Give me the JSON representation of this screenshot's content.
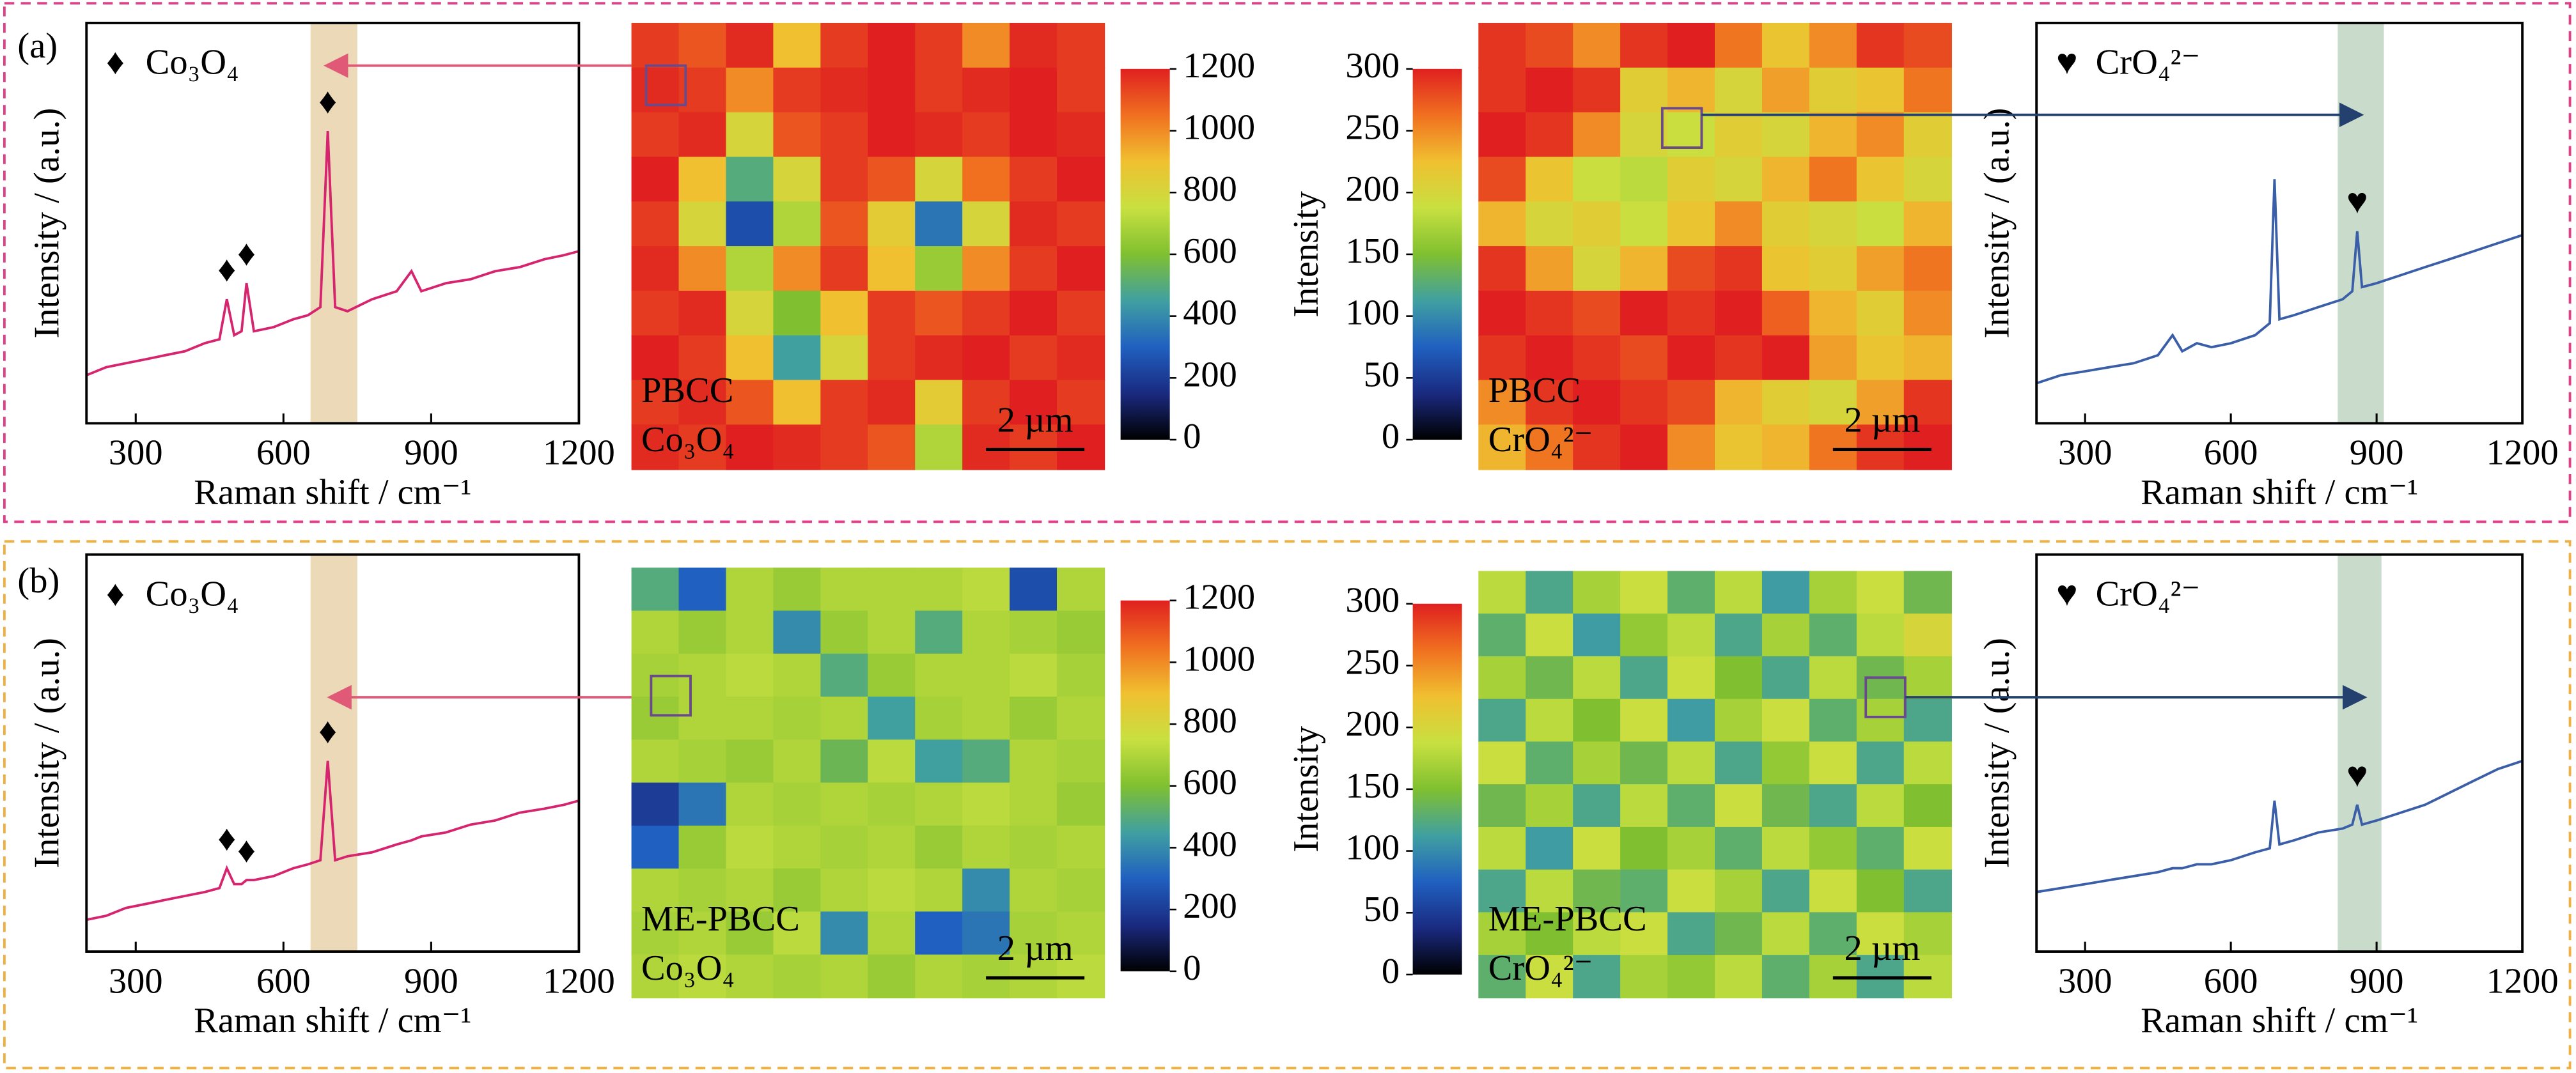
{
  "panel_labels": [
    "(a)",
    "(b)"
  ],
  "chart_data": [
    {
      "type": "line",
      "x": [
        200,
        240,
        280,
        320,
        360,
        400,
        440,
        470,
        485,
        500,
        515,
        525,
        540,
        580,
        620,
        650,
        675,
        690,
        705,
        730,
        780,
        830,
        860,
        880,
        930,
        980,
        1030,
        1080,
        1130,
        1170,
        1200
      ],
      "values": [
        12,
        14,
        15,
        16,
        17,
        18,
        20,
        21,
        31,
        22,
        23,
        35,
        23,
        24,
        26,
        27,
        29,
        73,
        29,
        28,
        31,
        33,
        38,
        33,
        35,
        36,
        38,
        39,
        41,
        42,
        43
      ],
      "color": "#d6246e",
      "xlim": [
        200,
        1200
      ],
      "xticks": [
        300,
        600,
        900,
        1200
      ],
      "ylim": [
        0,
        100
      ],
      "xlabel": "Raman shift / cm⁻¹",
      "ylabel": "Intensity / (a.u.)",
      "legend": "Co₃O₄",
      "marker": "♦",
      "peaks": [
        485,
        525,
        690
      ],
      "highlight": [
        655,
        750
      ],
      "highlight_color": "#ecd9b8"
    },
    {
      "type": "heatmap",
      "clim": [
        0,
        1200
      ],
      "cticks": [
        0,
        200,
        400,
        600,
        800,
        1000,
        1200
      ],
      "colors": [
        "#000000",
        "#1a2a80",
        "#2060c0",
        "#40a0a0",
        "#80c030",
        "#c8e040",
        "#f0c030",
        "#f07020",
        "#e02020"
      ],
      "labels": [
        "PBCC",
        "Co₃O₄"
      ],
      "scalebar": "2 µm",
      "values": [
        [
          1150,
          1100,
          1180,
          900,
          1150,
          1200,
          1150,
          1000,
          1180,
          1150
        ],
        [
          1180,
          1150,
          1000,
          1150,
          1180,
          1200,
          1150,
          1180,
          1200,
          1150
        ],
        [
          1150,
          1180,
          800,
          1100,
          1150,
          1200,
          1180,
          1150,
          1200,
          1180
        ],
        [
          1200,
          900,
          500,
          800,
          1150,
          1100,
          800,
          1050,
          1150,
          1200
        ],
        [
          1150,
          800,
          250,
          700,
          1100,
          850,
          350,
          800,
          1180,
          1150
        ],
        [
          1180,
          1000,
          700,
          1000,
          1150,
          900,
          650,
          1000,
          1150,
          1200
        ],
        [
          1150,
          1180,
          800,
          600,
          900,
          1150,
          1100,
          1150,
          1200,
          1150
        ],
        [
          1200,
          1150,
          900,
          450,
          800,
          1150,
          1180,
          1200,
          1150,
          1180
        ],
        [
          1150,
          1180,
          1100,
          900,
          1150,
          1180,
          850,
          1150,
          1200,
          1150
        ],
        [
          1180,
          1150,
          1200,
          1180,
          1150,
          1100,
          700,
          1180,
          1150,
          1200
        ]
      ]
    },
    {
      "type": "heatmap",
      "clim": [
        0,
        300
      ],
      "cticks": [
        0,
        50,
        100,
        150,
        200,
        250,
        300
      ],
      "colorbar_label": "Intensity",
      "colors": [
        "#000000",
        "#1a2a80",
        "#2060c0",
        "#40a0a0",
        "#80c030",
        "#c8e040",
        "#f0c030",
        "#f07020",
        "#e02020"
      ],
      "labels": [
        "PBCC",
        "CrO₄²⁻"
      ],
      "scalebar": "2 µm",
      "values": [
        [
          290,
          280,
          250,
          290,
          300,
          260,
          220,
          250,
          290,
          280
        ],
        [
          290,
          300,
          290,
          210,
          230,
          200,
          240,
          210,
          220,
          260
        ],
        [
          300,
          290,
          250,
          200,
          190,
          210,
          200,
          230,
          250,
          210
        ],
        [
          280,
          220,
          190,
          180,
          210,
          200,
          230,
          260,
          220,
          200
        ],
        [
          230,
          200,
          210,
          190,
          220,
          250,
          210,
          200,
          190,
          230
        ],
        [
          290,
          240,
          200,
          230,
          280,
          290,
          220,
          210,
          240,
          260
        ],
        [
          300,
          290,
          280,
          300,
          290,
          300,
          270,
          230,
          210,
          250
        ],
        [
          290,
          300,
          290,
          280,
          300,
          290,
          300,
          240,
          220,
          230
        ],
        [
          250,
          290,
          300,
          290,
          280,
          230,
          210,
          200,
          240,
          290
        ],
        [
          230,
          260,
          290,
          300,
          250,
          220,
          230,
          260,
          290,
          300
        ]
      ]
    },
    {
      "type": "line",
      "x": [
        200,
        250,
        300,
        350,
        400,
        450,
        480,
        500,
        530,
        560,
        600,
        650,
        680,
        690,
        700,
        730,
        780,
        830,
        850,
        860,
        870,
        900,
        950,
        1000,
        1050,
        1100,
        1150,
        1200
      ],
      "values": [
        10,
        12,
        13,
        14,
        15,
        17,
        22,
        18,
        20,
        19,
        20,
        22,
        25,
        61,
        26,
        27,
        29,
        31,
        33,
        48,
        34,
        35,
        37,
        39,
        41,
        43,
        45,
        47
      ],
      "color": "#3a5ea8",
      "xlim": [
        200,
        1200
      ],
      "xticks": [
        300,
        600,
        900,
        1200
      ],
      "ylim": [
        0,
        100
      ],
      "xlabel": "Raman shift / cm⁻¹",
      "ylabel": "Intensity / (a.u.)",
      "legend": "CrO₄²⁻",
      "marker": "♥",
      "peaks": [
        860
      ],
      "highlight": [
        820,
        915
      ],
      "highlight_color": "#c9dccb"
    },
    {
      "type": "line",
      "x": [
        200,
        240,
        280,
        320,
        360,
        400,
        440,
        470,
        485,
        500,
        515,
        525,
        540,
        580,
        620,
        650,
        675,
        690,
        705,
        730,
        780,
        830,
        860,
        880,
        930,
        980,
        1030,
        1080,
        1130,
        1170,
        1200
      ],
      "values": [
        8,
        9,
        11,
        12,
        13,
        14,
        15,
        16,
        21,
        17,
        17,
        18,
        18,
        19,
        21,
        22,
        23,
        48,
        23,
        24,
        25,
        27,
        28,
        29,
        30,
        32,
        33,
        35,
        36,
        37,
        38
      ],
      "color": "#d6246e",
      "xlim": [
        200,
        1200
      ],
      "xticks": [
        300,
        600,
        900,
        1200
      ],
      "ylim": [
        0,
        100
      ],
      "xlabel": "Raman shift / cm⁻¹",
      "ylabel": "Intensity / (a.u.)",
      "legend": "Co₃O₄",
      "marker": "♦",
      "peaks": [
        485,
        525,
        690
      ],
      "highlight": [
        655,
        750
      ],
      "highlight_color": "#ecd9b8"
    },
    {
      "type": "heatmap",
      "clim": [
        0,
        1200
      ],
      "cticks": [
        0,
        200,
        400,
        600,
        800,
        1000,
        1200
      ],
      "colors": [
        "#000000",
        "#1a2a80",
        "#2060c0",
        "#40a0a0",
        "#80c030",
        "#c8e040",
        "#f0c030",
        "#f07020",
        "#e02020"
      ],
      "labels": [
        "ME-PBCC",
        "Co₃O₄"
      ],
      "scalebar": "2 µm",
      "values": [
        [
          500,
          300,
          700,
          650,
          700,
          700,
          700,
          720,
          250,
          700
        ],
        [
          700,
          650,
          700,
          400,
          650,
          700,
          500,
          700,
          680,
          650
        ],
        [
          680,
          700,
          720,
          700,
          500,
          650,
          700,
          700,
          720,
          680
        ],
        [
          650,
          700,
          700,
          680,
          700,
          450,
          680,
          700,
          650,
          700
        ],
        [
          700,
          680,
          650,
          700,
          550,
          720,
          450,
          500,
          700,
          680
        ],
        [
          200,
          350,
          700,
          680,
          700,
          680,
          700,
          720,
          700,
          650
        ],
        [
          300,
          650,
          720,
          700,
          680,
          700,
          650,
          700,
          680,
          700
        ],
        [
          700,
          680,
          700,
          650,
          700,
          720,
          700,
          400,
          700,
          680
        ],
        [
          680,
          700,
          650,
          720,
          400,
          700,
          300,
          350,
          680,
          700
        ],
        [
          700,
          720,
          700,
          680,
          700,
          650,
          700,
          680,
          700,
          720
        ]
      ]
    },
    {
      "type": "heatmap",
      "clim": [
        0,
        300
      ],
      "cticks": [
        0,
        50,
        100,
        150,
        200,
        250,
        300
      ],
      "colorbar_label": "Intensity",
      "colors": [
        "#000000",
        "#1a2a80",
        "#2060c0",
        "#40a0a0",
        "#80c030",
        "#c8e040",
        "#f0c030",
        "#f07020",
        "#e02020"
      ],
      "labels": [
        "ME-PBCC",
        "CrO₄²⁻"
      ],
      "scalebar": "2 µm",
      "values": [
        [
          180,
          120,
          170,
          190,
          130,
          180,
          110,
          170,
          190,
          140
        ],
        [
          130,
          190,
          110,
          160,
          180,
          120,
          170,
          130,
          180,
          200
        ],
        [
          170,
          140,
          180,
          120,
          190,
          150,
          120,
          180,
          140,
          170
        ],
        [
          120,
          180,
          150,
          190,
          110,
          170,
          190,
          130,
          170,
          120
        ],
        [
          190,
          130,
          170,
          140,
          180,
          120,
          160,
          190,
          120,
          180
        ],
        [
          140,
          170,
          120,
          180,
          130,
          190,
          140,
          120,
          180,
          150
        ],
        [
          180,
          110,
          190,
          150,
          170,
          130,
          180,
          160,
          130,
          190
        ],
        [
          120,
          180,
          140,
          130,
          190,
          170,
          120,
          190,
          150,
          120
        ],
        [
          170,
          150,
          180,
          190,
          120,
          140,
          180,
          130,
          190,
          170
        ],
        [
          130,
          190,
          120,
          170,
          160,
          180,
          130,
          170,
          120,
          180
        ]
      ]
    },
    {
      "type": "line",
      "x": [
        200,
        250,
        300,
        350,
        400,
        450,
        480,
        500,
        530,
        560,
        600,
        650,
        680,
        690,
        700,
        730,
        780,
        830,
        850,
        860,
        870,
        900,
        950,
        1000,
        1050,
        1100,
        1150,
        1200
      ],
      "values": [
        15,
        16,
        17,
        18,
        19,
        20,
        21,
        21,
        22,
        22,
        23,
        25,
        26,
        38,
        27,
        28,
        30,
        31,
        32,
        37,
        32,
        33,
        35,
        37,
        40,
        43,
        46,
        48
      ],
      "color": "#3a5ea8",
      "xlim": [
        200,
        1200
      ],
      "xticks": [
        300,
        600,
        900,
        1200
      ],
      "ylim": [
        0,
        100
      ],
      "xlabel": "Raman shift / cm⁻¹",
      "ylabel": "Intensity / (a.u.)",
      "legend": "CrO₄²⁻",
      "marker": "♥",
      "peaks": [
        860
      ],
      "highlight": [
        820,
        910
      ],
      "highlight_color": "#c9dccb"
    }
  ]
}
